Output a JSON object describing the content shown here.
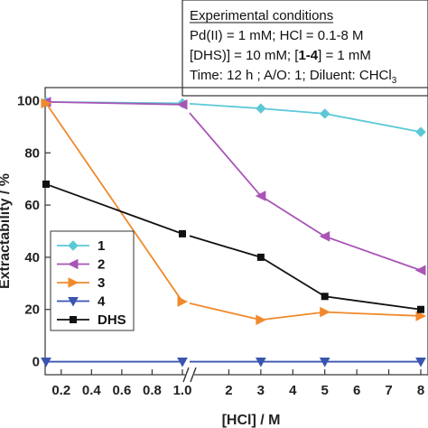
{
  "conditions": {
    "heading": "Experimental conditions",
    "line1": "Pd(II) = 1 mM; HCl = 0.1-8 M",
    "line2_pre": "[DHS)] = 10 mM; [",
    "line2_bold": "1-4",
    "line2_post": "] = 1 mM",
    "line3": "Time: 12 h ; A/O: 1; Diluent: CHCl",
    "line3_sub": "3"
  },
  "chart_data": {
    "type": "line",
    "title": "",
    "xlabel": "[HCl] / M",
    "ylabel": "Extractability / %",
    "ylim": [
      -5,
      105
    ],
    "y_ticks": [
      0,
      20,
      40,
      60,
      80,
      100
    ],
    "x_axis_break": true,
    "x_segments": [
      {
        "range": [
          0.1,
          1.0
        ],
        "ticks": [
          0.2,
          0.4,
          0.6,
          0.8,
          1.0
        ],
        "tick_labels": [
          "0.2",
          "0.4",
          "0.6",
          "0.8",
          "1.0"
        ]
      },
      {
        "range": [
          1.0,
          8.0
        ],
        "ticks": [
          2,
          3,
          4,
          5,
          6,
          7,
          8
        ],
        "tick_labels": [
          "2",
          "3",
          "4",
          "5",
          "6",
          "7",
          "8"
        ]
      }
    ],
    "x": [
      0.1,
      1.0,
      3,
      5,
      8
    ],
    "series": [
      {
        "name": "1",
        "color": "#5bc8d6",
        "marker": "diamond",
        "values": [
          99.5,
          99,
          97,
          95,
          88
        ]
      },
      {
        "name": "2",
        "color": "#a855b5",
        "marker": "triangle-left",
        "values": [
          99.5,
          98.5,
          63.5,
          48,
          35
        ]
      },
      {
        "name": "3",
        "color": "#f08a2c",
        "marker": "triangle-right",
        "values": [
          99,
          23,
          16,
          19,
          17.5
        ]
      },
      {
        "name": "4",
        "color": "#3a55b0",
        "marker": "triangle-down",
        "values": [
          0,
          0,
          0,
          0,
          0
        ]
      },
      {
        "name": "DHS",
        "color": "#111111",
        "marker": "square",
        "values": [
          68,
          49,
          40,
          25,
          20
        ]
      }
    ],
    "legend_position": "bottom-left",
    "grid": false
  }
}
